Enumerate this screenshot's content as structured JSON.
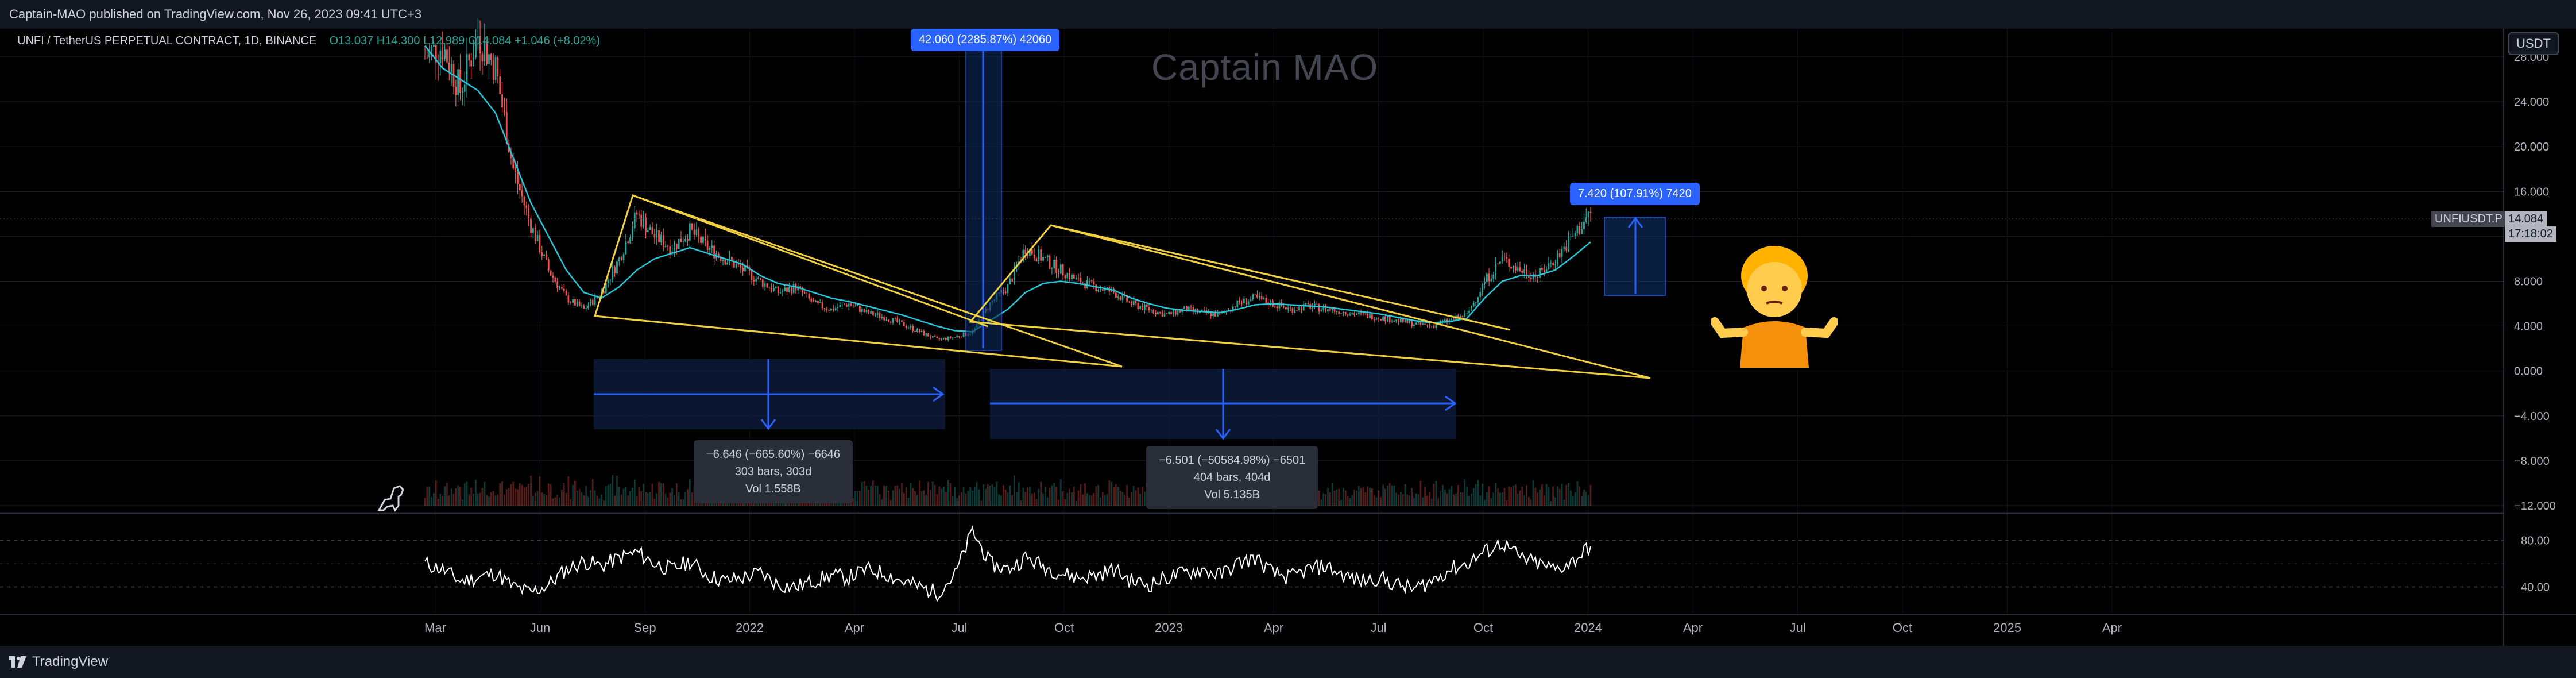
{
  "header": {
    "published_text": "Captain-MAO published on TradingView.com, Nov 26, 2023 09:41 UTC+3"
  },
  "symbol_info": {
    "title": "UNFI / TetherUS PERPETUAL CONTRACT, 1D, BINANCE",
    "open": "O13.037",
    "high": "H14.300",
    "low": "L12.989",
    "close": "C14.084",
    "change": "+1.046 (+8.02%)"
  },
  "watermark": "Captain MAO",
  "currency_badge": "USDT",
  "last_price": {
    "symbol": "UNFIUSDT.P",
    "price": "14.084",
    "countdown": "17:18:02"
  },
  "measurements": {
    "spike": "42.060 (2285.87%) 42060",
    "target": "7.420 (107.91%) 7420",
    "drop1": {
      "line1": "−6.646 (−665.60%) −6646",
      "line2": "303 bars, 303d",
      "line3": "Vol 1.558B"
    },
    "drop2": {
      "line1": "−6.501 (−50584.98%) −6501",
      "line2": "404 bars, 404d",
      "line3": "Vol 5.135B"
    }
  },
  "footer": {
    "brand": "TradingView"
  },
  "colors": {
    "background": "#000000",
    "triangle": "#f0d040",
    "measure_blue": "#2962ff",
    "ma_line": "#26c6da",
    "up_candle": "#26a69a",
    "down_candle": "#ef5350",
    "rsi_line": "#ffffff",
    "grid": "#1e222d"
  },
  "chart_data": [
    {
      "type": "line",
      "subtype": "candlestick",
      "series": [
        {
          "name": "",
          "x": [
            "2021-03-01",
            "2021-03-15",
            "2021-04-01",
            "2021-04-15",
            "2021-05-01",
            "2021-05-15",
            "2021-06-01",
            "2021-06-15",
            "2021-07-01",
            "2021-07-15",
            "2021-08-01",
            "2021-08-15",
            "2021-09-01",
            "2021-09-15",
            "2021-10-01",
            "2021-10-15",
            "2021-11-01",
            "2021-11-15",
            "2021-12-01",
            "2021-12-15",
            "2022-01-01",
            "2022-01-15",
            "2022-02-01",
            "2022-02-15",
            "2022-03-01",
            "2022-03-15",
            "2022-04-01",
            "2022-04-15",
            "2022-05-01",
            "2022-05-15",
            "2022-06-01",
            "2022-06-15",
            "2022-07-01",
            "2022-07-15",
            "2022-08-01",
            "2022-08-15",
            "2022-09-01",
            "2022-09-15",
            "2022-10-01",
            "2022-10-15",
            "2022-11-01",
            "2022-11-15",
            "2022-12-01",
            "2022-12-15",
            "2023-01-01",
            "2023-01-15",
            "2023-02-01",
            "2023-02-15",
            "2023-03-01",
            "2023-03-15",
            "2023-04-01",
            "2023-04-15",
            "2023-05-01",
            "2023-05-15",
            "2023-06-01",
            "2023-06-15",
            "2023-07-01",
            "2023-07-15",
            "2023-08-01",
            "2023-08-15",
            "2023-09-01",
            "2023-09-15",
            "2023-10-01",
            "2023-10-15",
            "2023-11-01",
            "2023-11-15",
            "2023-11-26"
          ],
          "values": [
            28,
            29,
            25,
            30,
            27,
            18,
            13,
            9,
            6.5,
            5.5,
            7,
            10,
            14,
            12,
            11,
            12.5,
            11,
            10,
            9,
            8,
            7,
            7.5,
            6,
            5.5,
            6,
            5.2,
            4.8,
            4.2,
            3.5,
            2.8,
            3,
            3.5,
            6,
            7.5,
            11,
            10,
            9,
            8,
            7.5,
            7,
            6,
            5.5,
            5,
            5.5,
            5.2,
            5,
            6,
            6.5,
            6,
            5.5,
            5.8,
            5.5,
            5.3,
            5,
            4.8,
            4.5,
            4.2,
            4,
            4.5,
            5,
            8,
            10,
            9,
            8.5,
            10,
            12,
            14.084
          ]
        },
        {
          "name": "",
          "values": [
            29,
            27,
            26,
            25,
            23,
            19,
            15,
            12,
            9,
            7,
            6.5,
            7.5,
            9,
            10,
            10.5,
            11,
            10.5,
            10,
            9.5,
            8.5,
            7.8,
            7.5,
            7,
            6.5,
            6.2,
            5.8,
            5.4,
            5,
            4.5,
            4,
            3.6,
            3.5,
            4.5,
            5.5,
            7,
            7.8,
            8,
            7.8,
            7.5,
            7.2,
            6.5,
            6,
            5.6,
            5.4,
            5.3,
            5.2,
            5.5,
            5.9,
            6,
            5.9,
            5.8,
            5.7,
            5.5,
            5.3,
            5.1,
            4.8,
            4.5,
            4.3,
            4.4,
            4.7,
            6.5,
            8,
            8.5,
            8.5,
            9,
            10.2,
            11.5
          ]
        }
      ],
      "ylim": [
        -12,
        30
      ],
      "y_ticks": [
        "28.000",
        "24.000",
        "20.000",
        "16.000",
        "12.000",
        "8.000",
        "4.000",
        "0.000",
        "−4.000",
        "−8.000",
        "−12.000"
      ],
      "x_ticks": [
        "Mar",
        "Jun",
        "Sep",
        "2022",
        "Apr",
        "Jul",
        "Oct",
        "2023",
        "Apr",
        "Jul",
        "Oct",
        "2024",
        "Apr",
        "Jul",
        "Oct",
        "2025",
        "Apr"
      ],
      "annotations": [
        "42.060 (2285.87%) 42060",
        "7.420 (107.91%) 7420",
        "−6.646 (−665.60%) −6646",
        "−6.501 (−50584.98%) −6501"
      ],
      "scale": "linear",
      "grid": true
    },
    {
      "type": "line",
      "subtype": "rsi",
      "series": [
        {
          "name": "",
          "values": [
            60,
            55,
            45,
            48,
            52,
            40,
            35,
            42,
            55,
            62,
            58,
            65,
            70,
            60,
            55,
            62,
            50,
            45,
            48,
            52,
            42,
            40,
            45,
            50,
            48,
            55,
            52,
            45,
            40,
            35,
            50,
            88,
            60,
            55,
            65,
            58,
            52,
            48,
            50,
            55,
            45,
            42,
            48,
            52,
            55,
            50,
            60,
            65,
            52,
            48,
            55,
            58,
            50,
            45,
            48,
            42,
            38,
            45,
            55,
            60,
            70,
            78,
            65,
            60,
            55,
            62,
            75
          ]
        }
      ],
      "ylim": [
        20,
        100
      ],
      "y_ticks": [
        "80.00",
        "40.00"
      ],
      "grid": true
    }
  ]
}
